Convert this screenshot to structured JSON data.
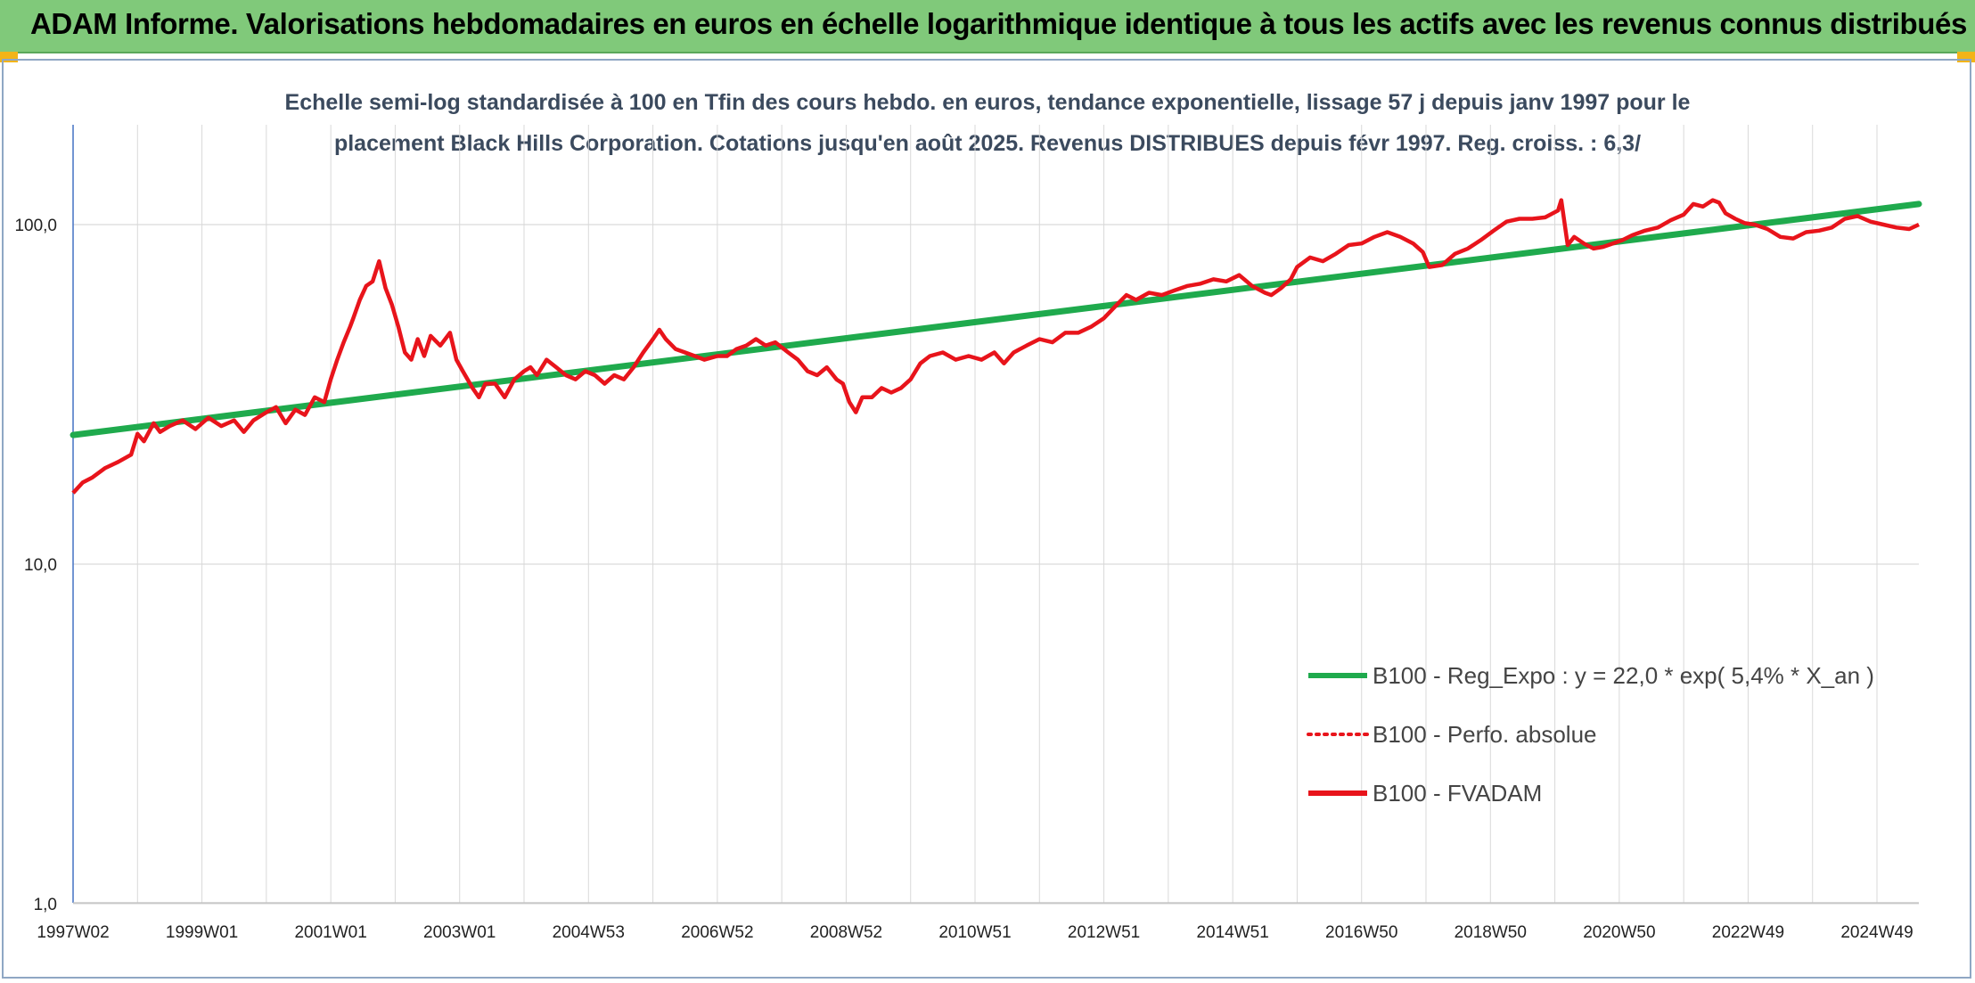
{
  "header": {
    "title": "ADAM Informe. Valorisations hebdomadaires en euros en échelle logarithmique identique à tous les actifs avec les revenus connus distribués"
  },
  "colors": {
    "banner": "#80c97a",
    "regression": "#1faa4d",
    "fvadam": "#e8141b",
    "perfo": "#e8141b",
    "grid": "#d9d9d9"
  },
  "chart_data": {
    "type": "line",
    "title": "Echelle semi-log standardisée à 100 en Tfin des cours hebdo. en euros, tendance exponentielle, lissage 57 j depuis janv 1997 pour le placement Black Hills Corporation. Cotations jusqu'en août 2025. Revenus DISTRIBUES depuis févr 1997. Reg. croiss. : 6,3/",
    "subtitle_lines": [
      "Echelle semi-log standardisée à 100 en Tfin des cours hebdo. en euros, tendance exponentielle, lissage 57 j depuis janv 1997 pour le",
      "placement Black Hills Corporation. Cotations jusqu'en août 2025. Revenus DISTRIBUES depuis févr 1997. Reg. croiss. : 6,3/"
    ],
    "y_scale": "log",
    "ylim": [
      1,
      200
    ],
    "xlim": [
      1997.0,
      2025.65
    ],
    "y_ticks": [
      {
        "value": 1,
        "label": "1,0"
      },
      {
        "value": 10,
        "label": "10,0"
      },
      {
        "value": 100,
        "label": "100,0"
      }
    ],
    "x_ticks": [
      {
        "year": 1997.0,
        "label": "1997W02"
      },
      {
        "year": 1999.0,
        "label": "1999W01"
      },
      {
        "year": 2001.0,
        "label": "2001W01"
      },
      {
        "year": 2003.0,
        "label": "2003W01"
      },
      {
        "year": 2005.0,
        "label": "2004W53"
      },
      {
        "year": 2007.0,
        "label": "2006W52"
      },
      {
        "year": 2009.0,
        "label": "2008W52"
      },
      {
        "year": 2011.0,
        "label": "2010W51"
      },
      {
        "year": 2013.0,
        "label": "2012W51"
      },
      {
        "year": 2015.0,
        "label": "2014W51"
      },
      {
        "year": 2017.0,
        "label": "2016W50"
      },
      {
        "year": 2019.0,
        "label": "2018W50"
      },
      {
        "year": 2021.0,
        "label": "2020W50"
      },
      {
        "year": 2023.0,
        "label": "2022W49"
      },
      {
        "year": 2025.0,
        "label": "2024W49"
      }
    ],
    "grid_years": [
      1997,
      1998,
      1999,
      2000,
      2001,
      2002,
      2003,
      2004,
      2005,
      2006,
      2007,
      2008,
      2009,
      2010,
      2011,
      2012,
      2013,
      2014,
      2015,
      2016,
      2017,
      2018,
      2019,
      2020,
      2021,
      2022,
      2023,
      2024,
      2025
    ],
    "legend": {
      "placement": "bottom-right"
    },
    "series": [
      {
        "name": "B100 - Reg_Expo : y = 22,0 * exp( 5,4% *  X_an )",
        "style": "thick-solid",
        "color": "#1faa4d",
        "points": [
          [
            1997.0,
            24.0
          ],
          [
            2025.65,
            115.0
          ]
        ]
      },
      {
        "name": "B100 - Perfo. absolue",
        "style": "dotted",
        "color": "#e8141b",
        "points": []
      },
      {
        "name": "B100 - FVADAM",
        "style": "solid",
        "color": "#e8141b",
        "points": [
          [
            1997.0,
            16.2
          ],
          [
            1997.15,
            17.4
          ],
          [
            1997.3,
            18.0
          ],
          [
            1997.5,
            19.2
          ],
          [
            1997.7,
            20.0
          ],
          [
            1997.9,
            21.0
          ],
          [
            1998.0,
            24.2
          ],
          [
            1998.1,
            23.0
          ],
          [
            1998.25,
            26.0
          ],
          [
            1998.35,
            24.5
          ],
          [
            1998.5,
            25.5
          ],
          [
            1998.7,
            26.5
          ],
          [
            1998.9,
            25.0
          ],
          [
            1999.1,
            27.0
          ],
          [
            1999.3,
            25.5
          ],
          [
            1999.5,
            26.5
          ],
          [
            1999.65,
            24.5
          ],
          [
            1999.8,
            26.5
          ],
          [
            2000.0,
            28.0
          ],
          [
            2000.15,
            29.0
          ],
          [
            2000.3,
            26.0
          ],
          [
            2000.45,
            28.5
          ],
          [
            2000.6,
            27.5
          ],
          [
            2000.75,
            31.0
          ],
          [
            2000.9,
            30.0
          ],
          [
            2001.0,
            35.0
          ],
          [
            2001.1,
            40.0
          ],
          [
            2001.2,
            45.0
          ],
          [
            2001.3,
            50.0
          ],
          [
            2001.35,
            53.0
          ],
          [
            2001.45,
            60.0
          ],
          [
            2001.55,
            66.0
          ],
          [
            2001.65,
            68.0
          ],
          [
            2001.75,
            78.0
          ],
          [
            2001.85,
            65.0
          ],
          [
            2001.95,
            58.0
          ],
          [
            2002.05,
            50.0
          ],
          [
            2002.15,
            42.0
          ],
          [
            2002.25,
            40.0
          ],
          [
            2002.35,
            46.0
          ],
          [
            2002.45,
            41.0
          ],
          [
            2002.55,
            47.0
          ],
          [
            2002.7,
            44.0
          ],
          [
            2002.85,
            48.0
          ],
          [
            2002.95,
            40.0
          ],
          [
            2003.05,
            37.0
          ],
          [
            2003.2,
            33.0
          ],
          [
            2003.3,
            31.0
          ],
          [
            2003.4,
            34.0
          ],
          [
            2003.55,
            34.0
          ],
          [
            2003.7,
            31.0
          ],
          [
            2003.85,
            35.0
          ],
          [
            2004.0,
            37.0
          ],
          [
            2004.1,
            38.0
          ],
          [
            2004.2,
            36.0
          ],
          [
            2004.35,
            40.0
          ],
          [
            2004.5,
            38.0
          ],
          [
            2004.65,
            36.0
          ],
          [
            2004.8,
            35.0
          ],
          [
            2004.95,
            37.0
          ],
          [
            2005.1,
            36.0
          ],
          [
            2005.25,
            34.0
          ],
          [
            2005.4,
            36.0
          ],
          [
            2005.55,
            35.0
          ],
          [
            2005.7,
            38.0
          ],
          [
            2005.85,
            42.0
          ],
          [
            2006.0,
            46.0
          ],
          [
            2006.1,
            49.0
          ],
          [
            2006.2,
            46.0
          ],
          [
            2006.35,
            43.0
          ],
          [
            2006.5,
            42.0
          ],
          [
            2006.65,
            41.0
          ],
          [
            2006.8,
            40.0
          ],
          [
            2007.0,
            41.0
          ],
          [
            2007.15,
            41.0
          ],
          [
            2007.3,
            43.0
          ],
          [
            2007.45,
            44.0
          ],
          [
            2007.6,
            46.0
          ],
          [
            2007.75,
            44.0
          ],
          [
            2007.9,
            45.0
          ],
          [
            2008.1,
            42.0
          ],
          [
            2008.25,
            40.0
          ],
          [
            2008.4,
            37.0
          ],
          [
            2008.55,
            36.0
          ],
          [
            2008.7,
            38.0
          ],
          [
            2008.85,
            35.0
          ],
          [
            2008.95,
            34.0
          ],
          [
            2009.05,
            30.0
          ],
          [
            2009.15,
            28.0
          ],
          [
            2009.25,
            31.0
          ],
          [
            2009.4,
            31.0
          ],
          [
            2009.55,
            33.0
          ],
          [
            2009.7,
            32.0
          ],
          [
            2009.85,
            33.0
          ],
          [
            2010.0,
            35.0
          ],
          [
            2010.15,
            39.0
          ],
          [
            2010.3,
            41.0
          ],
          [
            2010.5,
            42.0
          ],
          [
            2010.7,
            40.0
          ],
          [
            2010.9,
            41.0
          ],
          [
            2011.1,
            40.0
          ],
          [
            2011.3,
            42.0
          ],
          [
            2011.45,
            39.0
          ],
          [
            2011.6,
            42.0
          ],
          [
            2011.8,
            44.0
          ],
          [
            2012.0,
            46.0
          ],
          [
            2012.2,
            45.0
          ],
          [
            2012.4,
            48.0
          ],
          [
            2012.6,
            48.0
          ],
          [
            2012.8,
            50.0
          ],
          [
            2013.0,
            53.0
          ],
          [
            2013.2,
            58.0
          ],
          [
            2013.35,
            62.0
          ],
          [
            2013.5,
            60.0
          ],
          [
            2013.7,
            63.0
          ],
          [
            2013.9,
            62.0
          ],
          [
            2014.1,
            64.0
          ],
          [
            2014.3,
            66.0
          ],
          [
            2014.5,
            67.0
          ],
          [
            2014.7,
            69.0
          ],
          [
            2014.9,
            68.0
          ],
          [
            2015.1,
            71.0
          ],
          [
            2015.3,
            66.0
          ],
          [
            2015.5,
            63.0
          ],
          [
            2015.6,
            62.0
          ],
          [
            2015.75,
            65.0
          ],
          [
            2015.9,
            69.0
          ],
          [
            2016.0,
            75.0
          ],
          [
            2016.2,
            80.0
          ],
          [
            2016.4,
            78.0
          ],
          [
            2016.6,
            82.0
          ],
          [
            2016.8,
            87.0
          ],
          [
            2017.0,
            88.0
          ],
          [
            2017.2,
            92.0
          ],
          [
            2017.4,
            95.0
          ],
          [
            2017.6,
            92.0
          ],
          [
            2017.8,
            88.0
          ],
          [
            2017.95,
            83.0
          ],
          [
            2018.05,
            75.0
          ],
          [
            2018.25,
            76.0
          ],
          [
            2018.45,
            82.0
          ],
          [
            2018.65,
            85.0
          ],
          [
            2018.85,
            90.0
          ],
          [
            2019.05,
            96.0
          ],
          [
            2019.25,
            102.0
          ],
          [
            2019.45,
            104.0
          ],
          [
            2019.65,
            104.0
          ],
          [
            2019.85,
            105.0
          ],
          [
            2020.05,
            110.0
          ],
          [
            2020.1,
            118.0
          ],
          [
            2020.2,
            87.0
          ],
          [
            2020.3,
            92.0
          ],
          [
            2020.45,
            88.0
          ],
          [
            2020.6,
            85.0
          ],
          [
            2020.75,
            86.0
          ],
          [
            2020.9,
            88.0
          ],
          [
            2021.05,
            90.0
          ],
          [
            2021.2,
            93.0
          ],
          [
            2021.4,
            96.0
          ],
          [
            2021.6,
            98.0
          ],
          [
            2021.8,
            103.0
          ],
          [
            2022.0,
            107.0
          ],
          [
            2022.15,
            115.0
          ],
          [
            2022.3,
            113.0
          ],
          [
            2022.45,
            118.0
          ],
          [
            2022.55,
            116.0
          ],
          [
            2022.65,
            108.0
          ],
          [
            2022.8,
            104.0
          ],
          [
            2022.95,
            101.0
          ],
          [
            2023.1,
            100.0
          ],
          [
            2023.3,
            97.0
          ],
          [
            2023.5,
            92.0
          ],
          [
            2023.7,
            91.0
          ],
          [
            2023.9,
            95.0
          ],
          [
            2024.1,
            96.0
          ],
          [
            2024.3,
            98.0
          ],
          [
            2024.5,
            104.0
          ],
          [
            2024.7,
            106.0
          ],
          [
            2024.9,
            102.0
          ],
          [
            2025.1,
            100.0
          ],
          [
            2025.3,
            98.0
          ],
          [
            2025.5,
            97.0
          ],
          [
            2025.65,
            100.0
          ]
        ]
      }
    ]
  }
}
